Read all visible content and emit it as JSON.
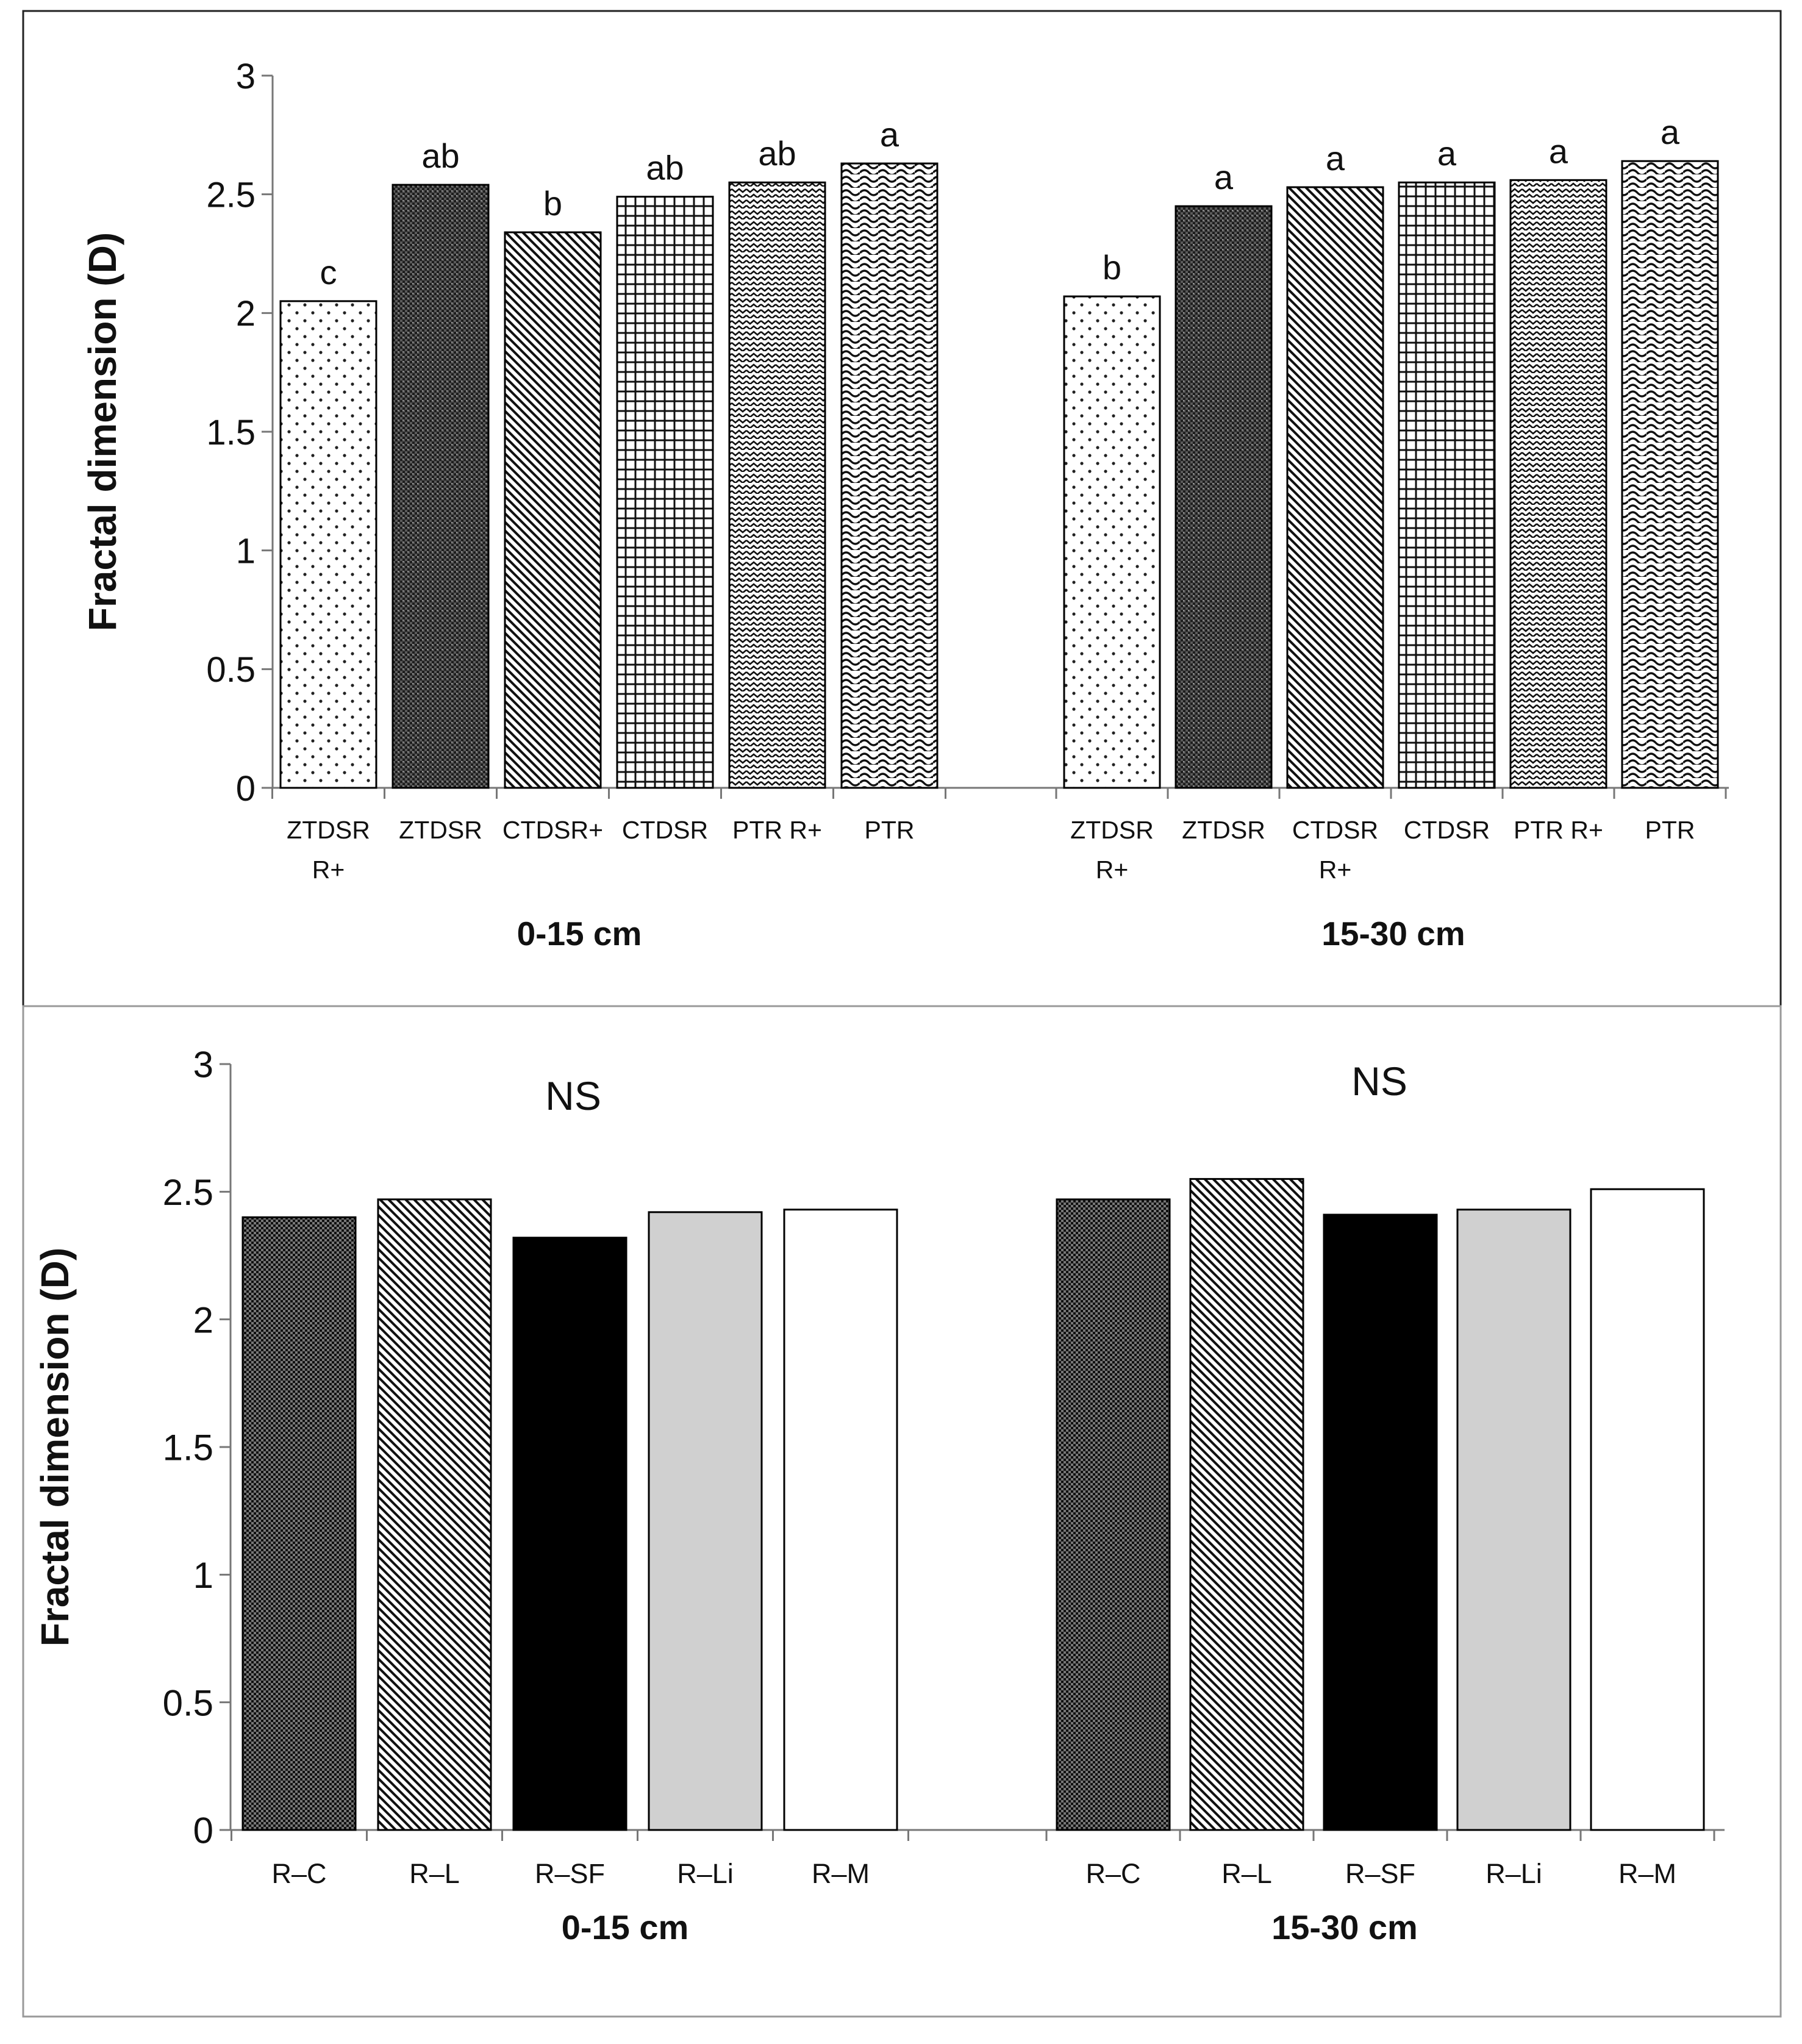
{
  "chart_data": [
    {
      "type": "bar",
      "ylabel": "Fractal dimension (D)",
      "ylim": [
        0,
        3
      ],
      "yticks": [
        "0",
        "0.5",
        "1",
        "1.5",
        "2",
        "2.5",
        "3"
      ],
      "grid": false,
      "groups": [
        {
          "label": "0-15 cm",
          "bars": [
            {
              "category": [
                "ZTDSR",
                "R+"
              ],
              "value": 2.05,
              "label": "c",
              "pattern": "dots"
            },
            {
              "category": [
                "ZTDSR"
              ],
              "value": 2.54,
              "label": "ab",
              "pattern": "dense"
            },
            {
              "category": [
                "CTDSR+"
              ],
              "value": 2.34,
              "label": "b",
              "pattern": "diag"
            },
            {
              "category": [
                "CTDSR"
              ],
              "value": 2.49,
              "label": "ab",
              "pattern": "grid"
            },
            {
              "category": [
                "PTR R+"
              ],
              "value": 2.55,
              "label": "ab",
              "pattern": "hzig"
            },
            {
              "category": [
                "PTR"
              ],
              "value": 2.63,
              "label": "a",
              "pattern": "wave"
            }
          ]
        },
        {
          "label": "15-30 cm",
          "bars": [
            {
              "category": [
                "ZTDSR",
                "R+"
              ],
              "value": 2.07,
              "label": "b",
              "pattern": "dots"
            },
            {
              "category": [
                "ZTDSR"
              ],
              "value": 2.45,
              "label": "a",
              "pattern": "dense"
            },
            {
              "category": [
                "CTDSR",
                "R+"
              ],
              "value": 2.53,
              "label": "a",
              "pattern": "diag"
            },
            {
              "category": [
                "CTDSR"
              ],
              "value": 2.55,
              "label": "a",
              "pattern": "grid"
            },
            {
              "category": [
                "PTR R+"
              ],
              "value": 2.56,
              "label": "a",
              "pattern": "hzig"
            },
            {
              "category": [
                "PTR"
              ],
              "value": 2.64,
              "label": "a",
              "pattern": "wave"
            }
          ]
        }
      ]
    },
    {
      "type": "bar",
      "ylabel": "Fractal dimension (D)",
      "ylim": [
        0,
        3
      ],
      "yticks": [
        "0",
        "0.5",
        "1",
        "1.5",
        "2",
        "2.5",
        "3"
      ],
      "grid": false,
      "groups": [
        {
          "label": "0-15 cm",
          "annotation": "NS",
          "bars": [
            {
              "category": [
                "R–C"
              ],
              "value": 2.4,
              "pattern": "checker"
            },
            {
              "category": [
                "R–L"
              ],
              "value": 2.47,
              "pattern": "diag"
            },
            {
              "category": [
                "R–SF"
              ],
              "value": 2.32,
              "pattern": "black"
            },
            {
              "category": [
                "R–Li"
              ],
              "value": 2.42,
              "pattern": "gray"
            },
            {
              "category": [
                "R–M"
              ],
              "value": 2.43,
              "pattern": "white"
            }
          ]
        },
        {
          "label": "15-30 cm",
          "annotation": "NS",
          "bars": [
            {
              "category": [
                "R–C"
              ],
              "value": 2.47,
              "pattern": "checker"
            },
            {
              "category": [
                "R–L"
              ],
              "value": 2.55,
              "pattern": "diag"
            },
            {
              "category": [
                "R–SF"
              ],
              "value": 2.41,
              "pattern": "black"
            },
            {
              "category": [
                "R–Li"
              ],
              "value": 2.43,
              "pattern": "gray"
            },
            {
              "category": [
                "R–M"
              ],
              "value": 2.51,
              "pattern": "white"
            }
          ]
        }
      ]
    }
  ]
}
